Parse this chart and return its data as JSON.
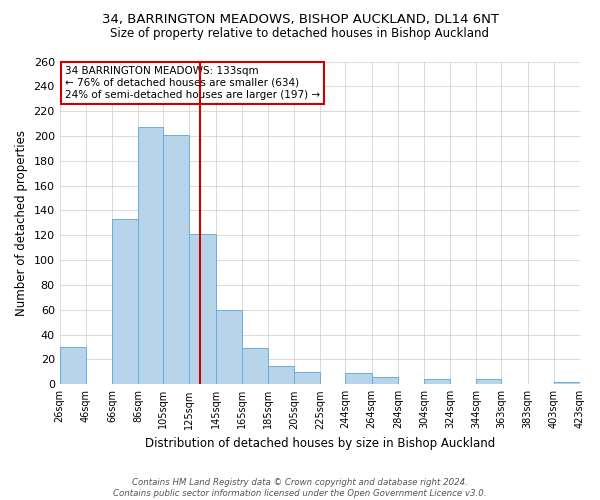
{
  "title": "34, BARRINGTON MEADOWS, BISHOP AUCKLAND, DL14 6NT",
  "subtitle": "Size of property relative to detached houses in Bishop Auckland",
  "xlabel": "Distribution of detached houses by size in Bishop Auckland",
  "ylabel": "Number of detached properties",
  "bar_edges": [
    26,
    46,
    66,
    86,
    105,
    125,
    145,
    165,
    185,
    205,
    225,
    244,
    264,
    284,
    304,
    324,
    344,
    363,
    383,
    403,
    423
  ],
  "bar_heights": [
    30,
    0,
    133,
    207,
    201,
    121,
    60,
    29,
    15,
    10,
    0,
    9,
    6,
    0,
    4,
    0,
    4,
    0,
    0,
    2
  ],
  "bar_color": "#b8d4ea",
  "bar_edgecolor": "#6aaed6",
  "tick_labels": [
    "26sqm",
    "46sqm",
    "66sqm",
    "86sqm",
    "105sqm",
    "125sqm",
    "145sqm",
    "165sqm",
    "185sqm",
    "205sqm",
    "225sqm",
    "244sqm",
    "264sqm",
    "284sqm",
    "304sqm",
    "324sqm",
    "344sqm",
    "363sqm",
    "383sqm",
    "403sqm",
    "423sqm"
  ],
  "vline_x": 133,
  "vline_color": "#cc0000",
  "ylim": [
    0,
    260
  ],
  "yticks": [
    0,
    20,
    40,
    60,
    80,
    100,
    120,
    140,
    160,
    180,
    200,
    220,
    240,
    260
  ],
  "annotation_title": "34 BARRINGTON MEADOWS: 133sqm",
  "annotation_line1": "← 76% of detached houses are smaller (634)",
  "annotation_line2": "24% of semi-detached houses are larger (197) →",
  "annotation_box_color": "#ffffff",
  "annotation_box_edgecolor": "#cc0000",
  "footnote1": "Contains HM Land Registry data © Crown copyright and database right 2024.",
  "footnote2": "Contains public sector information licensed under the Open Government Licence v3.0.",
  "background_color": "#ffffff",
  "grid_color": "#cccccc"
}
